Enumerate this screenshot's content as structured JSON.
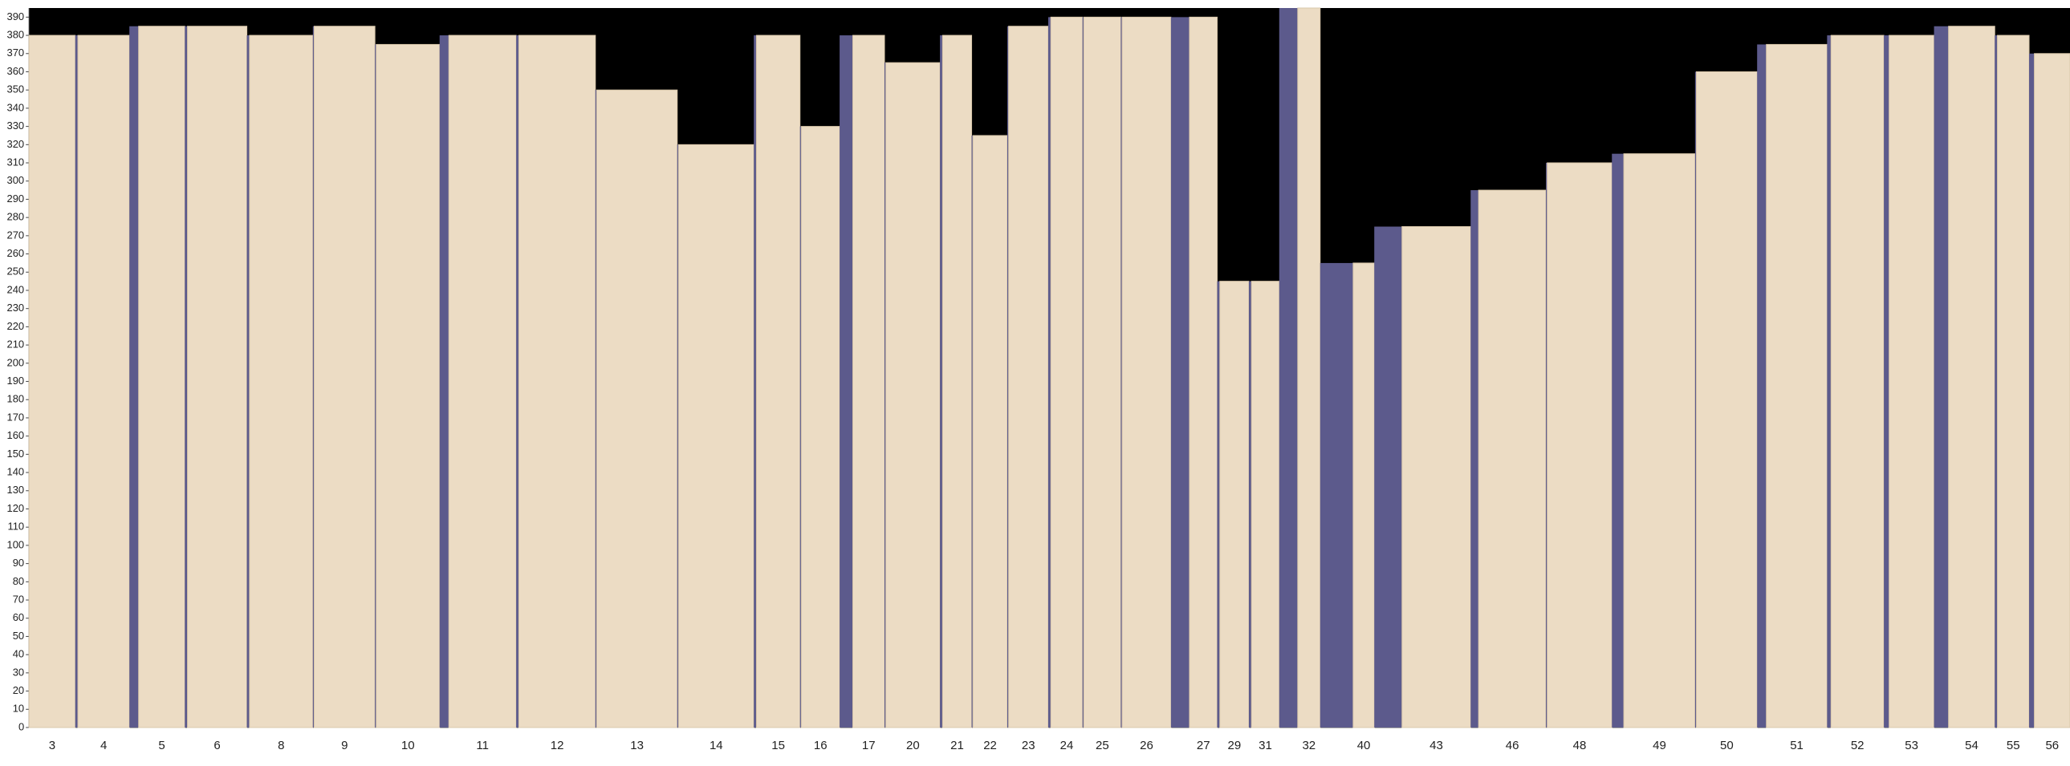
{
  "chart_data": {
    "type": "bar",
    "categories": [
      "3",
      "4",
      "5",
      "6",
      "8",
      "9",
      "10",
      "11",
      "12",
      "13",
      "14",
      "15",
      "16",
      "17",
      "20",
      "21",
      "22",
      "23",
      "24",
      "25",
      "26",
      "27",
      "29",
      "31",
      "32",
      "40",
      "43",
      "46",
      "48",
      "49",
      "50",
      "51",
      "52",
      "53",
      "54",
      "55",
      "56"
    ],
    "values": [
      380,
      380,
      385,
      385,
      380,
      385,
      375,
      380,
      380,
      350,
      320,
      380,
      330,
      380,
      365,
      380,
      325,
      385,
      390,
      390,
      390,
      390,
      245,
      245,
      395,
      255,
      275,
      295,
      310,
      315,
      360,
      375,
      380,
      380,
      385,
      380,
      370
    ],
    "color": "#ecdcc4",
    "gap_color": "#5c5a8c",
    "background": "#000000",
    "ylim": [
      0,
      395
    ],
    "yticks": [
      0,
      10,
      20,
      30,
      40,
      50,
      60,
      70,
      80,
      90,
      100,
      110,
      120,
      130,
      140,
      150,
      160,
      170,
      180,
      190,
      200,
      210,
      220,
      230,
      240,
      250,
      260,
      270,
      280,
      290,
      300,
      310,
      320,
      330,
      340,
      350,
      360,
      370,
      380,
      390
    ],
    "grid": false
  }
}
